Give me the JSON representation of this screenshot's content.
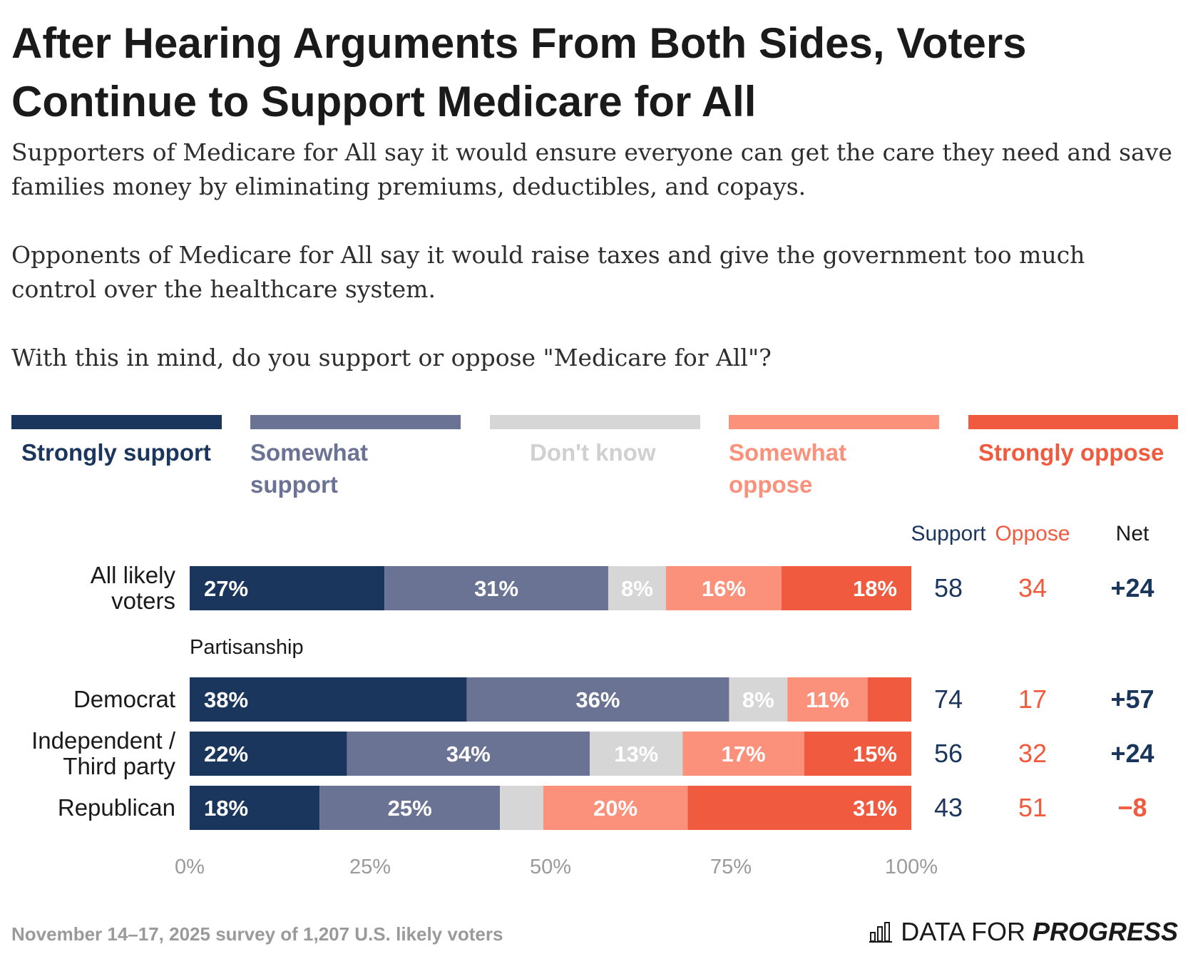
{
  "title": "After Hearing Arguments From Both Sides, Voters Continue to Support Medicare for All",
  "subtitle_lines": [
    "Supporters of Medicare for All say it would ensure everyone can get the care they need and save families money by eliminating premiums, deductibles, and copays.",
    "Opponents of Medicare for All say it would raise taxes and give the government too much control over the healthcare system.",
    "With this in mind, do you support or oppose \"Medicare for All\"?"
  ],
  "column_headers": {
    "support": "Support",
    "oppose": "Oppose",
    "net": "Net"
  },
  "group_label": "Partisanship",
  "footer": "November 14–17, 2025 survey of 1,207 U.S. likely voters",
  "brand": {
    "part1": "DATA FOR",
    "part2": "PROGRESS"
  },
  "colors": {
    "strongly_support": "#1b365d",
    "somewhat_support": "#6b7394",
    "dont_know": "#d6d6d6",
    "somewhat_oppose": "#fb917b",
    "strongly_oppose": "#f05a3e",
    "support_text": "#1b365d",
    "oppose_text": "#f05a3e"
  },
  "chart_data": {
    "type": "bar",
    "orientation": "horizontal",
    "stacked": true,
    "xlim": [
      0,
      100
    ],
    "x_ticks": [
      "0%",
      "25%",
      "50%",
      "75%",
      "100%"
    ],
    "legend_placement": "top",
    "grid": false,
    "series_names": [
      "Strongly support",
      "Somewhat support",
      "Don't know",
      "Somewhat oppose",
      "Strongly oppose"
    ],
    "categories": [
      "All likely voters",
      "Democrat",
      "Independent / Third party",
      "Republican"
    ],
    "rows": [
      {
        "label_lines": [
          "All likely",
          "voters"
        ],
        "values": [
          27,
          31,
          8,
          16,
          18
        ],
        "labels": [
          "27%",
          "31%",
          "8%",
          "16%",
          "18%"
        ],
        "support": "58",
        "oppose": "34",
        "net": "+24"
      },
      {
        "label_lines": [
          "Democrat"
        ],
        "values": [
          38,
          36,
          8,
          11,
          6
        ],
        "labels": [
          "38%",
          "36%",
          "8%",
          "11%",
          ""
        ],
        "support": "74",
        "oppose": "17",
        "net": "+57"
      },
      {
        "label_lines": [
          "Independent /",
          "Third party"
        ],
        "values": [
          22,
          34,
          13,
          17,
          15
        ],
        "labels": [
          "22%",
          "34%",
          "13%",
          "17%",
          "15%"
        ],
        "support": "56",
        "oppose": "32",
        "net": "+24"
      },
      {
        "label_lines": [
          "Republican"
        ],
        "values": [
          18,
          25,
          6,
          20,
          31
        ],
        "labels": [
          "18%",
          "25%",
          "",
          "20%",
          "31%"
        ],
        "support": "43",
        "oppose": "51",
        "net": "−8"
      }
    ]
  }
}
